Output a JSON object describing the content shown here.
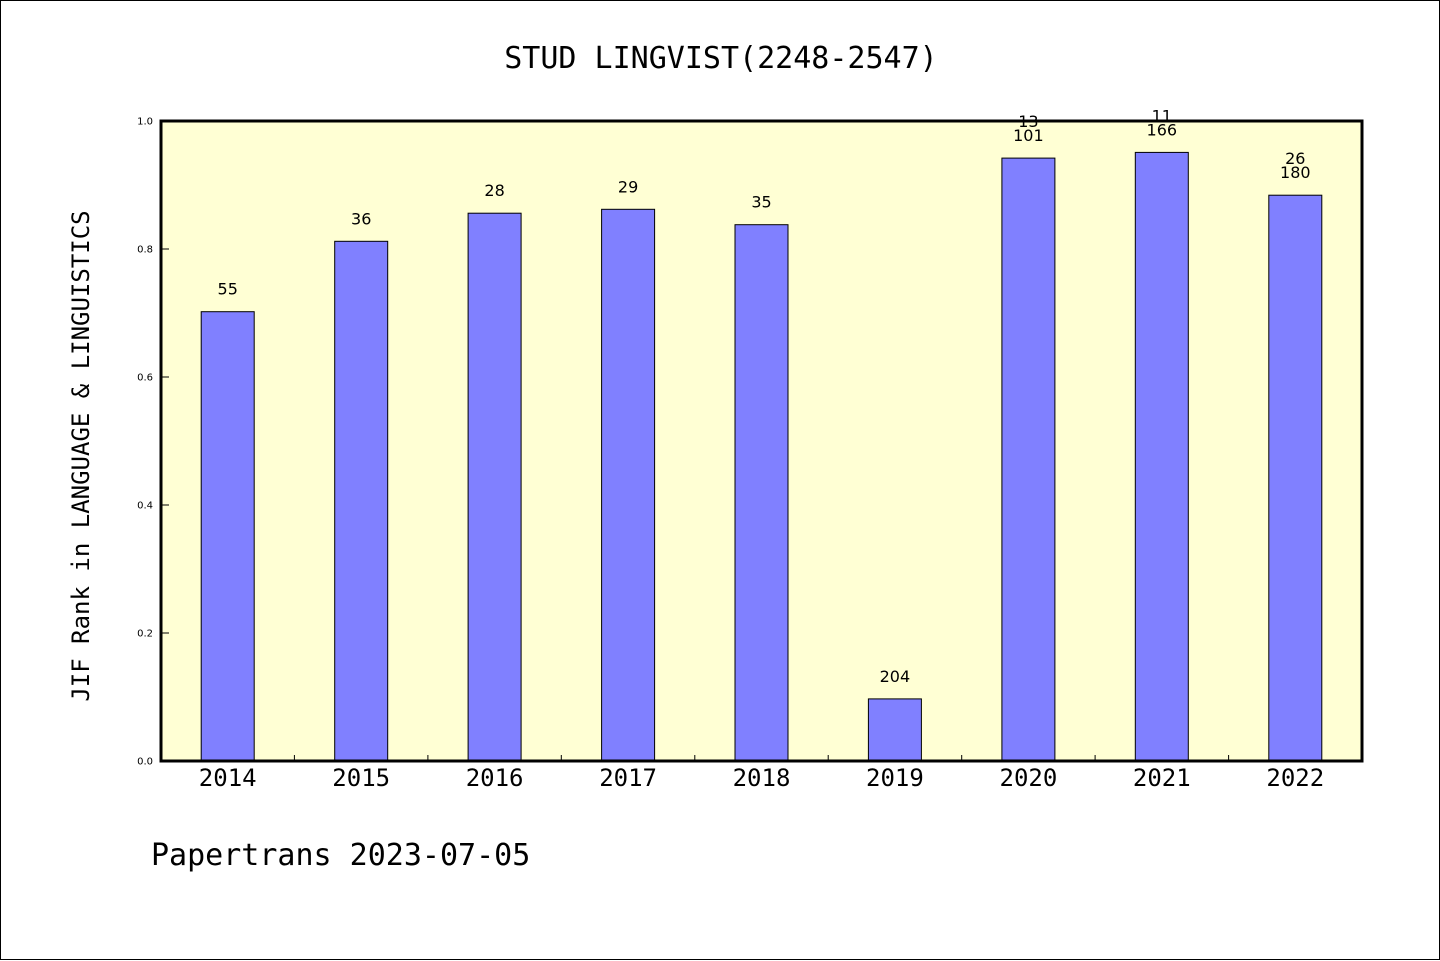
{
  "colors": {
    "plot_bg": "#ffffd4",
    "bar": "#8080ff",
    "bar_edge": "#000000"
  },
  "footer": "Papertrans 2023-07-05",
  "chart_data": {
    "type": "bar",
    "title": "STUD LINGVIST(2248-2547)",
    "xlabel": "",
    "ylabel": "JIF Rank in LANGUAGE & LINGUISTICS",
    "ylim": [
      0,
      1.0
    ],
    "yticks": [
      "0.0",
      "0.2",
      "0.4",
      "0.6",
      "0.8",
      "1.0"
    ],
    "grid": false,
    "categories": [
      "2014",
      "2015",
      "2016",
      "2017",
      "2018",
      "2019",
      "2020",
      "2021",
      "2022"
    ],
    "values": [
      0.702,
      0.812,
      0.856,
      0.862,
      0.838,
      0.097,
      0.942,
      0.951,
      0.884
    ],
    "bar_labels": [
      [
        "55"
      ],
      [
        "36"
      ],
      [
        "28"
      ],
      [
        "29"
      ],
      [
        "35"
      ],
      [
        "204"
      ],
      [
        "13",
        "101"
      ],
      [
        "11",
        "166"
      ],
      [
        "26",
        "180"
      ]
    ]
  }
}
